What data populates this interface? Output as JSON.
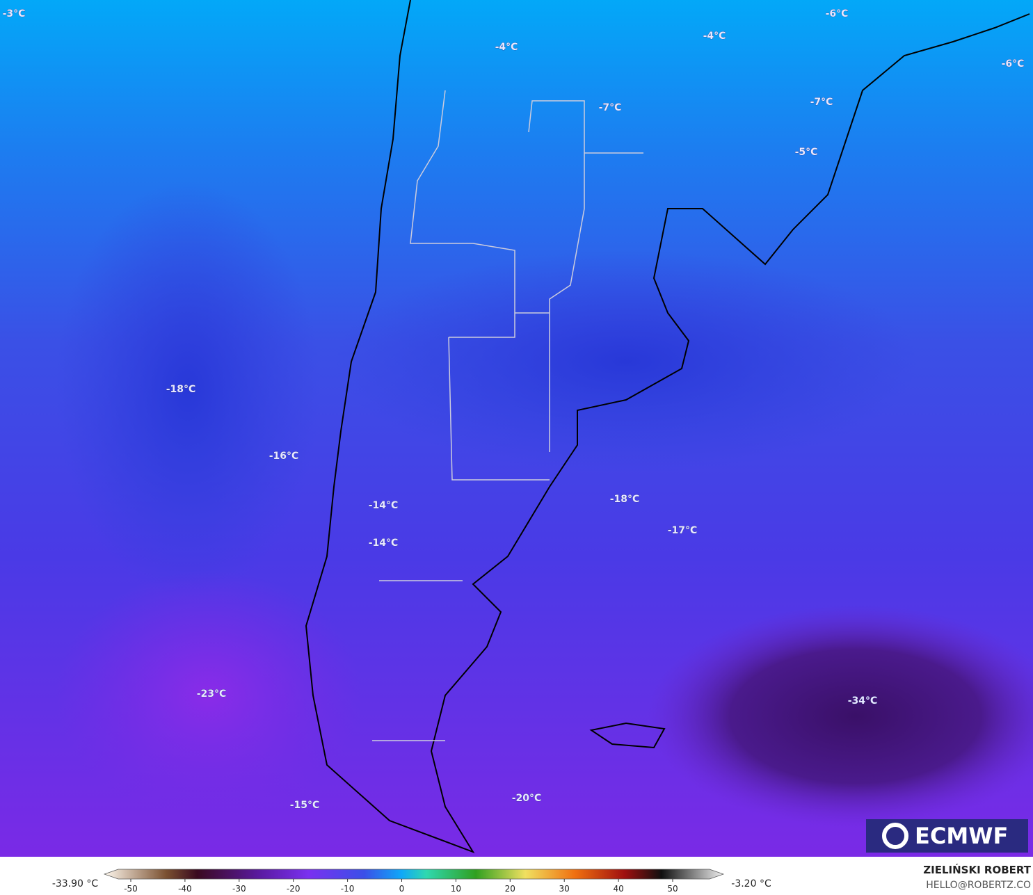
{
  "map": {
    "labels": [
      "-3°C",
      "-4°C",
      "-4°C",
      "-6°C",
      "-6°C",
      "-7°C",
      "-7°C",
      "-5°C",
      "-18°C",
      "-16°C",
      "-14°C",
      "-14°C",
      "-18°C",
      "-17°C",
      "-23°C",
      "-34°C",
      "-20°C",
      "-15°C"
    ],
    "logo": "ECMWF"
  },
  "colorbar": {
    "min": "-33.90 °C",
    "max": "-3.20 °C",
    "ticks": [
      -50,
      -40,
      -30,
      -20,
      -10,
      0,
      10,
      20,
      30,
      40,
      50
    ]
  },
  "credit": {
    "name": "ZIELIŃSKI ROBERT",
    "email": "HELLO@ROBERTZ.CO"
  }
}
